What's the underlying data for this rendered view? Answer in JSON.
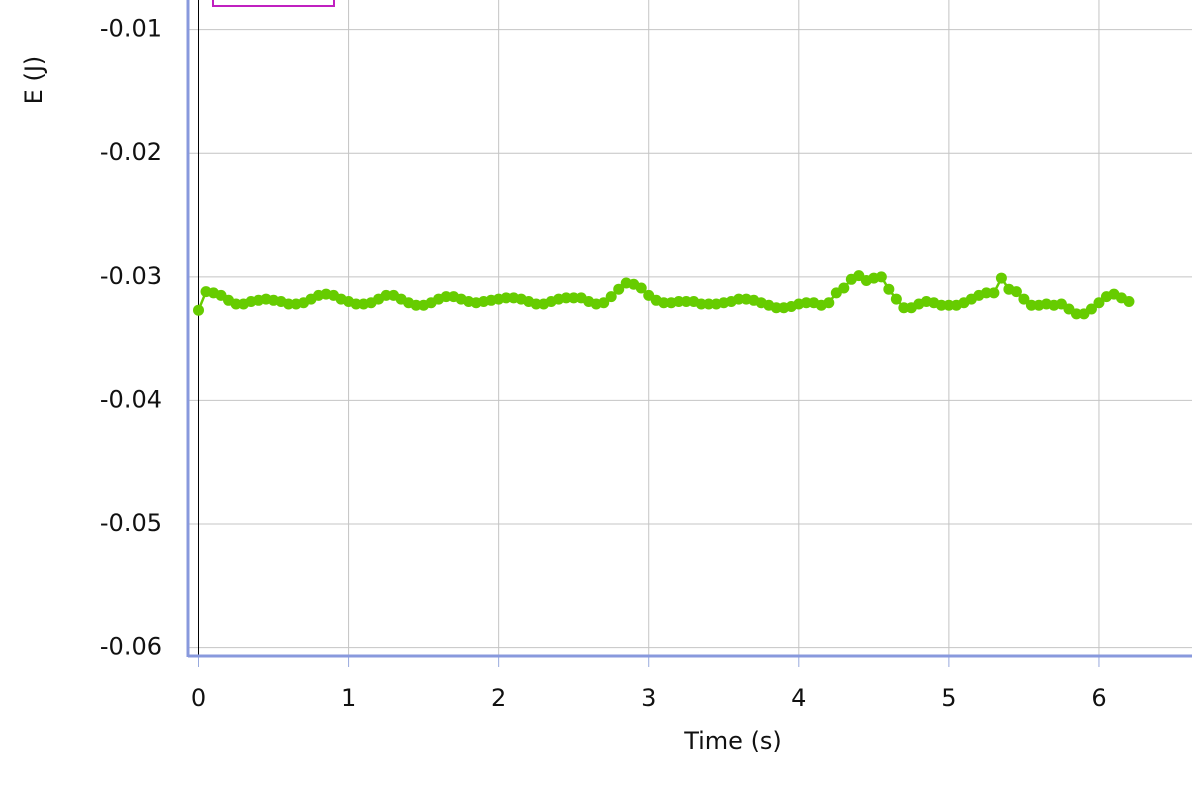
{
  "chart_data": {
    "type": "line",
    "xlabel": "Time (s)",
    "ylabel": "E (J)",
    "xlim": [
      -0.07,
      6.62
    ],
    "ylim": [
      -0.0606,
      -0.0076
    ],
    "xticks": [
      0,
      1,
      2,
      3,
      4,
      5,
      6
    ],
    "yticks": [
      -0.01,
      -0.02,
      -0.03,
      -0.04,
      -0.05,
      -0.06
    ],
    "grid": true,
    "x": [
      0,
      0.05,
      0.1,
      0.15,
      0.2,
      0.25,
      0.3,
      0.35,
      0.4,
      0.45,
      0.5,
      0.55,
      0.6,
      0.65,
      0.7,
      0.75,
      0.8,
      0.85,
      0.9,
      0.95,
      1,
      1.05,
      1.1,
      1.15,
      1.2,
      1.25,
      1.3,
      1.35,
      1.4,
      1.45,
      1.5,
      1.55,
      1.6,
      1.65,
      1.7,
      1.75,
      1.8,
      1.85,
      1.9,
      1.95,
      2,
      2.05,
      2.1,
      2.15,
      2.2,
      2.25,
      2.3,
      2.35,
      2.4,
      2.45,
      2.5,
      2.55,
      2.6,
      2.65,
      2.7,
      2.75,
      2.8,
      2.85,
      2.9,
      2.95,
      3,
      3.05,
      3.1,
      3.15,
      3.2,
      3.25,
      3.3,
      3.35,
      3.4,
      3.45,
      3.5,
      3.55,
      3.6,
      3.65,
      3.7,
      3.75,
      3.8,
      3.85,
      3.9,
      3.95,
      4,
      4.05,
      4.1,
      4.15,
      4.2,
      4.25,
      4.3,
      4.35,
      4.4,
      4.45,
      4.5,
      4.55,
      4.6,
      4.65,
      4.7,
      4.75,
      4.8,
      4.85,
      4.9,
      4.95,
      5,
      5.05,
      5.1,
      5.15,
      5.2,
      5.25,
      5.3,
      5.35,
      5.4,
      5.45,
      5.5,
      5.55,
      5.6,
      5.65,
      5.7,
      5.75,
      5.8,
      5.85,
      5.9,
      5.95,
      6,
      6.05,
      6.1,
      6.15,
      6.2
    ],
    "series": [
      {
        "color": "#66cc00",
        "values": [
          -0.0327,
          -0.0312,
          -0.0313,
          -0.0315,
          -0.0319,
          -0.0322,
          -0.0322,
          -0.032,
          -0.0319,
          -0.0318,
          -0.0319,
          -0.032,
          -0.0322,
          -0.0322,
          -0.0321,
          -0.0318,
          -0.0315,
          -0.0314,
          -0.0315,
          -0.0318,
          -0.032,
          -0.0322,
          -0.0322,
          -0.0321,
          -0.0318,
          -0.0315,
          -0.0315,
          -0.0318,
          -0.0321,
          -0.0323,
          -0.0323,
          -0.0321,
          -0.0318,
          -0.0316,
          -0.0316,
          -0.0318,
          -0.032,
          -0.0321,
          -0.032,
          -0.0319,
          -0.0318,
          -0.0317,
          -0.0317,
          -0.0318,
          -0.032,
          -0.0322,
          -0.0322,
          -0.032,
          -0.0318,
          -0.0317,
          -0.0317,
          -0.0317,
          -0.032,
          -0.0322,
          -0.0321,
          -0.0316,
          -0.031,
          -0.0305,
          -0.0306,
          -0.0309,
          -0.0315,
          -0.0319,
          -0.0321,
          -0.0321,
          -0.032,
          -0.032,
          -0.032,
          -0.0322,
          -0.0322,
          -0.0322,
          -0.0321,
          -0.032,
          -0.0318,
          -0.0318,
          -0.0319,
          -0.0321,
          -0.0323,
          -0.0325,
          -0.0325,
          -0.0324,
          -0.0322,
          -0.0321,
          -0.0321,
          -0.0323,
          -0.0321,
          -0.0313,
          -0.0309,
          -0.0302,
          -0.0299,
          -0.0303,
          -0.0301,
          -0.03,
          -0.031,
          -0.0318,
          -0.0325,
          -0.0325,
          -0.0322,
          -0.032,
          -0.0321,
          -0.0323,
          -0.0323,
          -0.0323,
          -0.0321,
          -0.0318,
          -0.0315,
          -0.0313,
          -0.0313,
          -0.0301,
          -0.031,
          -0.0312,
          -0.0318,
          -0.0323,
          -0.0323,
          -0.0322,
          -0.0323,
          -0.0322,
          -0.0326,
          -0.033,
          -0.033,
          -0.0326,
          -0.0321,
          -0.0316,
          -0.0314,
          -0.0317,
          -0.032
        ]
      }
    ]
  }
}
